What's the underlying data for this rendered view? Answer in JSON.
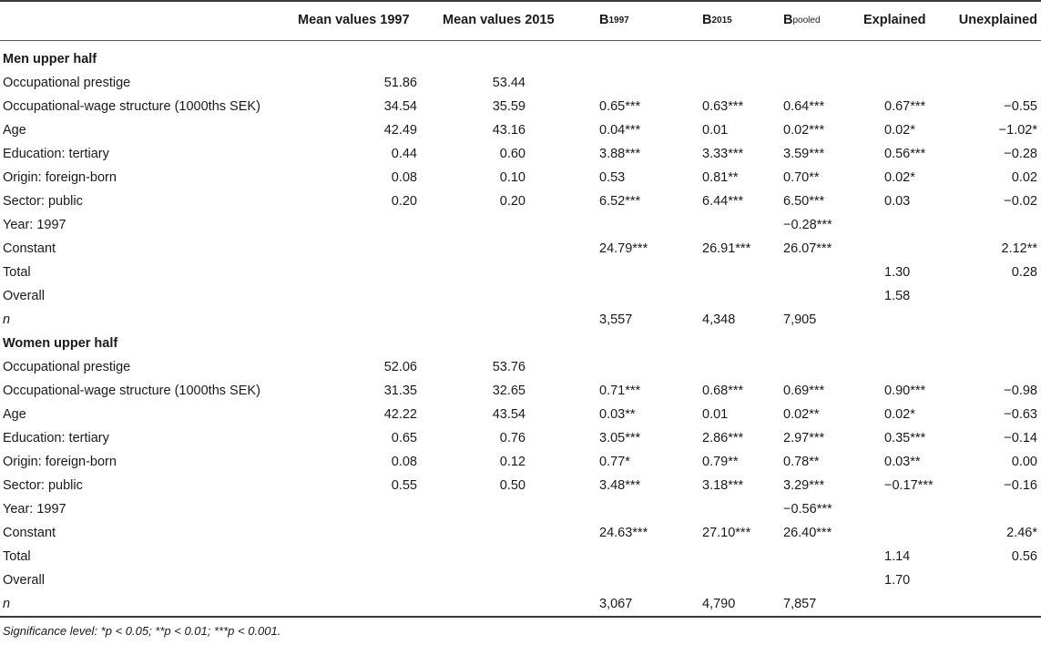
{
  "headers": {
    "mean1997": "Mean values 1997",
    "mean2015": "Mean values 2015",
    "b1997_base": "B",
    "b1997_sub": "1997",
    "b2015_base": "B",
    "b2015_sub": "2015",
    "bpooled_base": "B",
    "bpooled_sub": "pooled",
    "explained": "Explained",
    "unexplained": "Unexplained"
  },
  "rows": [
    {
      "label": "Men upper half",
      "section": true,
      "m97": "",
      "m15": "",
      "b97": "",
      "b15": "",
      "bp": "",
      "ex": "",
      "un": ""
    },
    {
      "label": "Occupational prestige",
      "m97": "51.86",
      "m15": "53.44",
      "b97": "",
      "b15": "",
      "bp": "",
      "ex": "",
      "un": ""
    },
    {
      "label": "Occupational-wage structure (1000ths SEK)",
      "m97": "34.54",
      "m15": "35.59",
      "b97": "0.65***",
      "b15": "0.63***",
      "bp": "0.64***",
      "ex": "0.67***",
      "un": "−0.55"
    },
    {
      "label": "Age",
      "m97": "42.49",
      "m15": "43.16",
      "b97": "0.04***",
      "b15": "0.01",
      "bp": "0.02***",
      "ex": "0.02*",
      "un": "−1.02*"
    },
    {
      "label": "Education: tertiary",
      "m97": "0.44",
      "m15": "0.60",
      "b97": "3.88***",
      "b15": "3.33***",
      "bp": "3.59***",
      "ex": "0.56***",
      "un": "−0.28"
    },
    {
      "label": "Origin: foreign-born",
      "m97": "0.08",
      "m15": "0.10",
      "b97": "0.53",
      "b15": "0.81**",
      "bp": "0.70**",
      "ex": "0.02*",
      "un": "0.02"
    },
    {
      "label": "Sector: public",
      "m97": "0.20",
      "m15": "0.20",
      "b97": "6.52***",
      "b15": "6.44***",
      "bp": "6.50***",
      "ex": "0.03",
      "un": "−0.02"
    },
    {
      "label": "Year: 1997",
      "m97": "",
      "m15": "",
      "b97": "",
      "b15": "",
      "bp": "−0.28***",
      "ex": "",
      "un": ""
    },
    {
      "label": "Constant",
      "m97": "",
      "m15": "",
      "b97": "24.79***",
      "b15": "26.91***",
      "bp": "26.07***",
      "ex": "",
      "un": "2.12**"
    },
    {
      "label": "Total",
      "m97": "",
      "m15": "",
      "b97": "",
      "b15": "",
      "bp": "",
      "ex": "1.30",
      "un": "0.28"
    },
    {
      "label": "Overall",
      "m97": "",
      "m15": "",
      "b97": "",
      "b15": "",
      "bp": "",
      "ex": "1.58",
      "un": ""
    },
    {
      "label": "n",
      "italic": true,
      "m97": "",
      "m15": "",
      "b97": "3,557",
      "b15": "4,348",
      "bp": "7,905",
      "ex": "",
      "un": ""
    },
    {
      "label": "Women upper half",
      "section": true,
      "m97": "",
      "m15": "",
      "b97": "",
      "b15": "",
      "bp": "",
      "ex": "",
      "un": ""
    },
    {
      "label": "Occupational prestige",
      "m97": "52.06",
      "m15": "53.76",
      "b97": "",
      "b15": "",
      "bp": "",
      "ex": "",
      "un": ""
    },
    {
      "label": "Occupational-wage structure (1000ths SEK)",
      "m97": "31.35",
      "m15": "32.65",
      "b97": "0.71***",
      "b15": "0.68***",
      "bp": "0.69***",
      "ex": "0.90***",
      "un": "−0.98"
    },
    {
      "label": "Age",
      "m97": "42.22",
      "m15": "43.54",
      "b97": "0.03**",
      "b15": "0.01",
      "bp": "0.02**",
      "ex": "0.02*",
      "un": "−0.63"
    },
    {
      "label": "Education: tertiary",
      "m97": "0.65",
      "m15": "0.76",
      "b97": "3.05***",
      "b15": "2.86***",
      "bp": "2.97***",
      "ex": "0.35***",
      "un": "−0.14"
    },
    {
      "label": "Origin: foreign-born",
      "m97": "0.08",
      "m15": "0.12",
      "b97": "0.77*",
      "b15": "0.79**",
      "bp": "0.78**",
      "ex": "0.03**",
      "un": "0.00"
    },
    {
      "label": "Sector: public",
      "m97": "0.55",
      "m15": "0.50",
      "b97": "3.48***",
      "b15": "3.18***",
      "bp": "3.29***",
      "ex": "−0.17***",
      "un": "−0.16"
    },
    {
      "label": "Year: 1997",
      "m97": "",
      "m15": "",
      "b97": "",
      "b15": "",
      "bp": "−0.56***",
      "ex": "",
      "un": ""
    },
    {
      "label": "Constant",
      "m97": "",
      "m15": "",
      "b97": "24.63***",
      "b15": "27.10***",
      "bp": "26.40***",
      "ex": "",
      "un": "2.46*"
    },
    {
      "label": "Total",
      "m97": "",
      "m15": "",
      "b97": "",
      "b15": "",
      "bp": "",
      "ex": "1.14",
      "un": "0.56"
    },
    {
      "label": "Overall",
      "m97": "",
      "m15": "",
      "b97": "",
      "b15": "",
      "bp": "",
      "ex": "1.70",
      "un": ""
    },
    {
      "label": "n",
      "italic": true,
      "m97": "",
      "m15": "",
      "b97": "3,067",
      "b15": "4,790",
      "bp": "7,857",
      "ex": "",
      "un": ""
    }
  ],
  "footnote": "Significance level: *p < 0.05; **p < 0.01; ***p < 0.001."
}
